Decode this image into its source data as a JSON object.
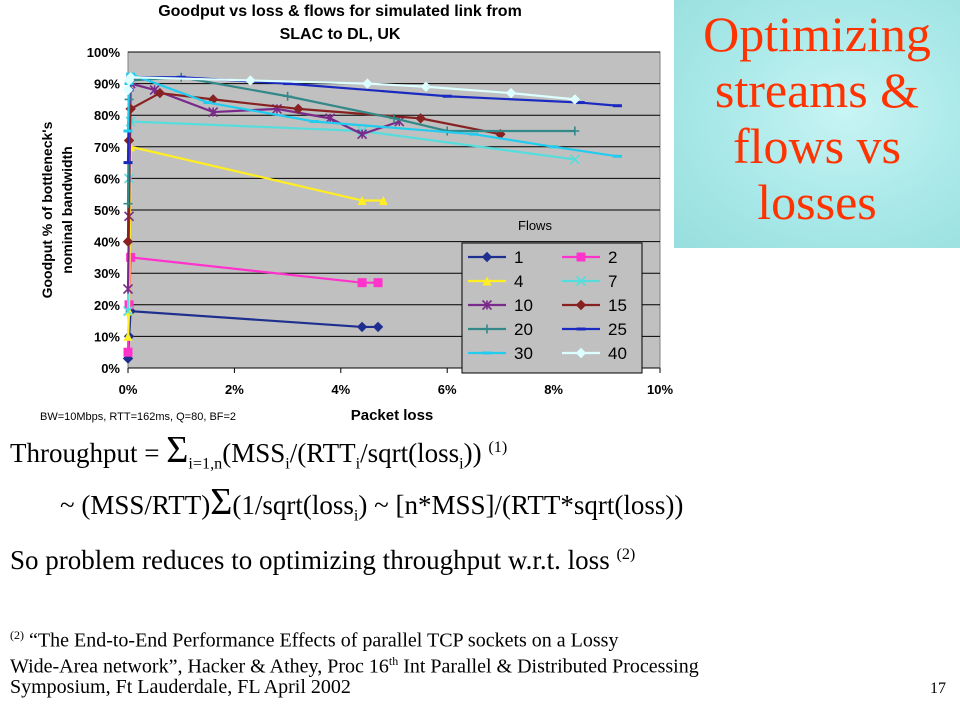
{
  "slide": {
    "title": "Optimizing\nstreams &\nflows vs\nlosses",
    "page_number": "17",
    "eq1": {
      "prefix": "Throughput = ",
      "sigma": "Σ",
      "sub": "i=1,n",
      "body_a": "(MSS",
      "sub_i1": "i",
      "body_b": "/(RTT",
      "sub_i2": "i",
      "body_c": "/sqrt(loss",
      "sub_i3": "i",
      "body_d": ")) ",
      "sup": "(1)"
    },
    "eq2": {
      "prefix": "~ (MSS/RTT)",
      "sigma": "Σ",
      "body_a": "(1/sqrt(loss",
      "sub_i": "i",
      "body_b": ") ~ [n*MSS]/(RTT*sqrt(loss))"
    },
    "eq3": {
      "text": "So problem reduces to optimizing throughput w.r.t. loss ",
      "sup": "(2)"
    },
    "ref": {
      "sup": "(2)",
      "line1": " “The End-to-End Performance Effects of parallel TCP sockets on a Lossy",
      "line2a": "Wide-Area network”, Hacker & Athey, Proc 16",
      "line2sup": "th",
      "line2b": " Int Parallel & Distributed Processing",
      "line3": "Symposium, Ft Lauderdale, FL April 2002"
    }
  },
  "chart_data": {
    "type": "line",
    "title": "Goodput vs loss & flows for simulated link from\nSLAC to DL, UK",
    "xlabel": "Packet loss",
    "ylabel": "Goodput % of bottleneck's\nnominal bandwidth",
    "note": "BW=10Mbps, RTT=162ms, Q=80, BF=2",
    "xlim": [
      0,
      10
    ],
    "ylim": [
      0,
      100
    ],
    "x_ticks": [
      "0%",
      "2%",
      "4%",
      "6%",
      "8%",
      "10%"
    ],
    "y_ticks": [
      "0%",
      "10%",
      "20%",
      "30%",
      "40%",
      "50%",
      "60%",
      "70%",
      "80%",
      "90%",
      "100%"
    ],
    "grid": true,
    "legend_title": "Flows",
    "legend_position": "inside-bottom-right",
    "series": [
      {
        "name": "1",
        "color": "#1f2f8f",
        "marker": "diamond",
        "x": [
          0,
          0.02,
          0.05,
          4.4,
          4.7
        ],
        "y": [
          3,
          10,
          18,
          13,
          13
        ]
      },
      {
        "name": "2",
        "color": "#ff33cc",
        "marker": "square",
        "x": [
          0,
          0.02,
          0.05,
          4.4,
          4.7
        ],
        "y": [
          5,
          20,
          35,
          27,
          27
        ]
      },
      {
        "name": "4",
        "color": "#ffee22",
        "marker": "triangle",
        "x": [
          0,
          0.02,
          0.05,
          4.4,
          4.8
        ],
        "y": [
          10,
          18,
          70,
          53,
          53
        ]
      },
      {
        "name": "7",
        "color": "#55dddd",
        "marker": "x",
        "x": [
          0,
          0.02,
          0.05,
          4.4,
          8.4
        ],
        "y": [
          18,
          60,
          78,
          75,
          66
        ]
      },
      {
        "name": "10",
        "color": "#7a2a8a",
        "marker": "asterisk",
        "x": [
          0,
          0.02,
          0.05,
          0.5,
          1.6,
          2.8,
          3.8,
          4.4,
          5.1
        ],
        "y": [
          25,
          48,
          90,
          88,
          81,
          82,
          79,
          74,
          78
        ]
      },
      {
        "name": "15",
        "color": "#882222",
        "marker": "diamond",
        "x": [
          0,
          0.02,
          0.05,
          0.6,
          1.6,
          3.2,
          5.5,
          7.0
        ],
        "y": [
          40,
          72,
          82,
          87,
          85,
          82,
          79,
          74
        ]
      },
      {
        "name": "20",
        "color": "#338888",
        "marker": "plus",
        "x": [
          0,
          0.02,
          0.05,
          1.0,
          3.0,
          5.0,
          6.0,
          8.4
        ],
        "y": [
          52,
          85,
          91,
          92,
          86,
          79,
          75,
          75
        ]
      },
      {
        "name": "25",
        "color": "#1a2ac0",
        "marker": "dash",
        "x": [
          0,
          0.02,
          0.05,
          1.0,
          3.0,
          6.0,
          8.5,
          9.2
        ],
        "y": [
          65,
          88,
          92,
          92,
          90,
          86,
          84,
          83
        ]
      },
      {
        "name": "30",
        "color": "#22ccee",
        "marker": "dash",
        "x": [
          0,
          0.02,
          0.05,
          1.5,
          3.5,
          6.5,
          8.0,
          9.2
        ],
        "y": [
          75,
          90,
          93,
          84,
          78,
          74,
          70,
          67
        ]
      },
      {
        "name": "40",
        "color": "#ddffff",
        "marker": "diamond",
        "x": [
          0,
          0.02,
          0.05,
          2.3,
          4.5,
          5.6,
          7.2,
          8.4
        ],
        "y": [
          88,
          91,
          92,
          91,
          90,
          89,
          87,
          85
        ]
      }
    ]
  }
}
